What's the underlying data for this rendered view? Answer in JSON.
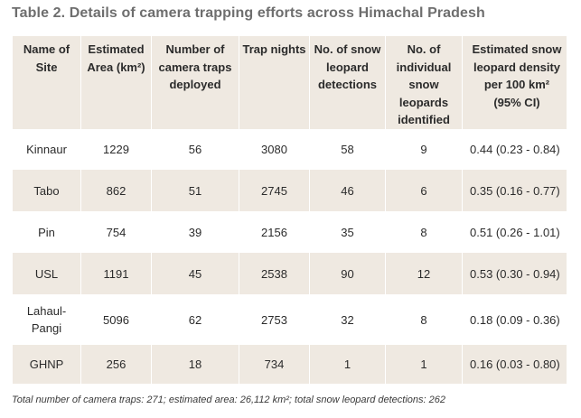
{
  "title": "Table 2. Details of camera trapping efforts across Himachal Pradesh",
  "table": {
    "headers": [
      "Name of Site",
      "Estimated Area (km²)",
      "Number of camera traps deployed",
      "Trap nights",
      "No. of snow leopard detections",
      "No. of individual snow leopards identified",
      "Estimated snow leopard density per 100 km² (95% CI)"
    ],
    "rows": [
      [
        "Kinnaur",
        "1229",
        "56",
        "3080",
        "58",
        "9",
        "0.44 (0.23 - 0.84)"
      ],
      [
        "Tabo",
        "862",
        "51",
        "2745",
        "46",
        "6",
        "0.35 (0.16 - 0.77)"
      ],
      [
        "Pin",
        "754",
        "39",
        "2156",
        "35",
        "8",
        "0.51 (0.26 - 1.01)"
      ],
      [
        "USL",
        "1191",
        "45",
        "2538",
        "90",
        "12",
        "0.53 (0.30 - 0.94)"
      ],
      [
        "Lahaul-Pangi",
        "5096",
        "62",
        "2753",
        "32",
        "8",
        "0.18 (0.09 - 0.36)"
      ],
      [
        "GHNP",
        "256",
        "18",
        "734",
        "1",
        "1",
        "0.16 (0.03 - 0.80)"
      ]
    ]
  },
  "footnote": "Total number of camera traps: 271; estimated area: 26,112 km²; total snow leopard detections: 262",
  "colors": {
    "title": "#6e6e6e",
    "header_background": "#efe9e1",
    "stripe_background": "#efe9e1",
    "text": "#2b2b2b"
  }
}
